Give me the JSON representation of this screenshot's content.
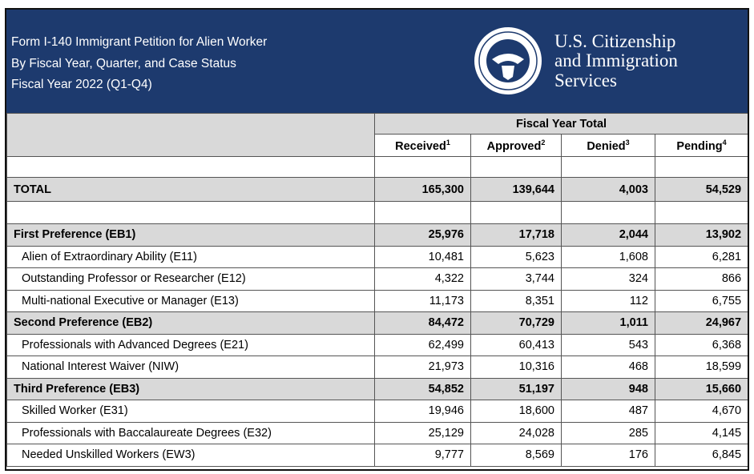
{
  "header": {
    "title_lines": [
      "Form I-140 Immigrant Petition for Alien Worker",
      "By Fiscal Year, Quarter, and Case Status",
      "Fiscal Year 2022 (Q1-Q4)"
    ],
    "logo_lines": [
      "U.S. Citizenship",
      "and Immigration",
      "Services"
    ]
  },
  "table": {
    "group_header": "Fiscal Year Total",
    "columns": [
      {
        "label": "Received",
        "note": "1"
      },
      {
        "label": "Approved",
        "note": "2"
      },
      {
        "label": "Denied",
        "note": "3"
      },
      {
        "label": "Pending",
        "note": "4"
      }
    ],
    "total": {
      "label": "TOTAL",
      "values": [
        "165,300",
        "139,644",
        "4,003",
        "54,529"
      ]
    },
    "groups": [
      {
        "label": "First Preference (EB1)",
        "values": [
          "25,976",
          "17,718",
          "2,044",
          "13,902"
        ],
        "items": [
          {
            "label": "Alien of Extraordinary Ability (E11)",
            "values": [
              "10,481",
              "5,623",
              "1,608",
              "6,281"
            ]
          },
          {
            "label": "Outstanding Professor or Researcher (E12)",
            "values": [
              "4,322",
              "3,744",
              "324",
              "866"
            ]
          },
          {
            "label": "Multi-national Executive or Manager (E13)",
            "values": [
              "11,173",
              "8,351",
              "112",
              "6,755"
            ]
          }
        ]
      },
      {
        "label": "Second Preference (EB2)",
        "values": [
          "84,472",
          "70,729",
          "1,011",
          "24,967"
        ],
        "items": [
          {
            "label": "Professionals with Advanced Degrees (E21)",
            "values": [
              "62,499",
              "60,413",
              "543",
              "6,368"
            ]
          },
          {
            "label": "National Interest Waiver (NIW)",
            "values": [
              "21,973",
              "10,316",
              "468",
              "18,599"
            ]
          }
        ]
      },
      {
        "label": "Third Preference (EB3)",
        "values": [
          "54,852",
          "51,197",
          "948",
          "15,660"
        ],
        "items": [
          {
            "label": "Skilled Worker (E31)",
            "values": [
              "19,946",
              "18,600",
              "487",
              "4,670"
            ]
          },
          {
            "label": "Professionals with Baccalaureate Degrees (E32)",
            "values": [
              "25,129",
              "24,028",
              "285",
              "4,145"
            ]
          },
          {
            "label": "Needed Unskilled Workers (EW3)",
            "values": [
              "9,777",
              "8,569",
              "176",
              "6,845"
            ]
          }
        ]
      }
    ]
  }
}
